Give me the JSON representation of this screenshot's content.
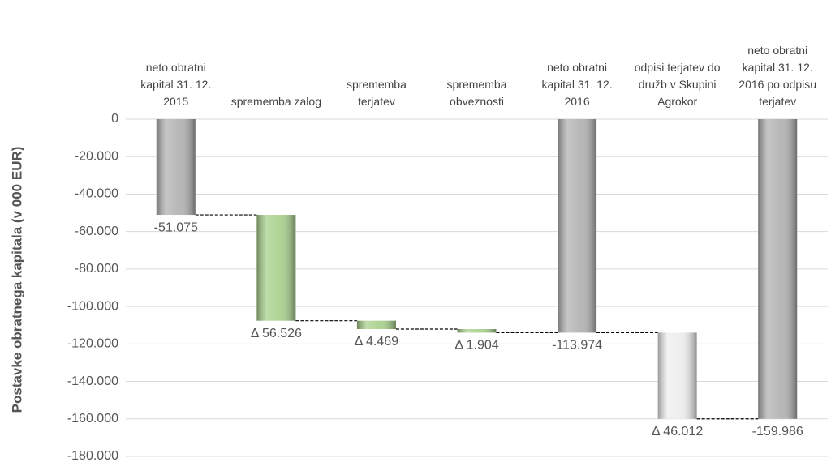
{
  "chart_data": {
    "type": "waterfall",
    "y_label": "Postavke obratnega kapitala  (v 000 EUR)",
    "categories": [
      "neto obratni kapital 31. 12. 2015",
      "sprememba zalog",
      "sprememba terjatev",
      "sprememba obveznosti",
      "neto obratni kapital 31. 12. 2016",
      "odpisi terjatev do družb v Skupini Agrokor",
      "neto obratni kapital 31. 12. 2016 po odpisu terjatev"
    ],
    "measure": [
      "absolute",
      "relative",
      "relative",
      "relative",
      "absolute",
      "relative",
      "absolute"
    ],
    "values": [
      -51075,
      -56526,
      -4469,
      -1904,
      -113974,
      -46012,
      -159986
    ],
    "value_labels": [
      "-51.075",
      "Δ 56.526",
      "Δ 4.469",
      "Δ 1.904",
      "-113.974",
      "Δ 46.012",
      "-159.986"
    ],
    "colors": [
      "#b3b3b3",
      "#a9d18e",
      "#a9d18e",
      "#a9d18e",
      "#b3b3b3",
      "#eeeeee",
      "#b3b3b3"
    ],
    "ylim": [
      -180000,
      0
    ],
    "yticks": [
      0,
      {
        "value": -20000,
        "label": "-20.000"
      },
      {
        "value": -40000,
        "label": "-40.000"
      },
      {
        "value": -60000,
        "label": "-60.000"
      },
      {
        "value": -80000,
        "label": "-80.000"
      },
      {
        "value": -100000,
        "label": "-100.000"
      },
      {
        "value": -120000,
        "label": "-120.000"
      },
      {
        "value": -140000,
        "label": "-140.000"
      },
      {
        "value": -160000,
        "label": "-160.000"
      },
      {
        "value": -180000,
        "label": "-180.000"
      }
    ],
    "grid": true
  }
}
